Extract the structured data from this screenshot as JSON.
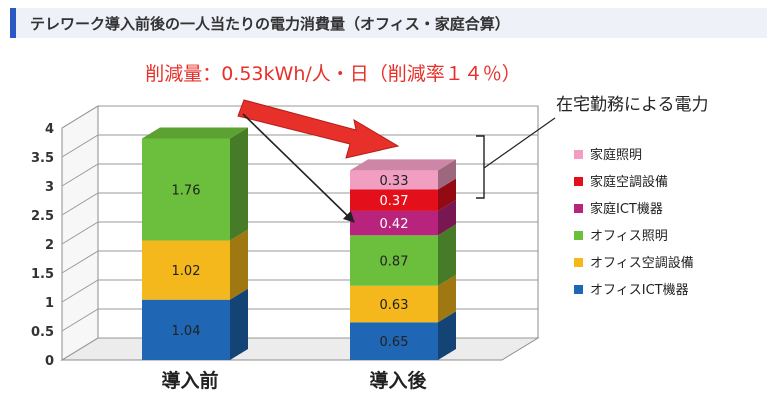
{
  "header": {
    "title": "テレワーク導入前後の一人当たりの電力消費量（オフィス・家庭合算）"
  },
  "colors": {
    "accent_bar": "#2b59c3",
    "annotation_red": "#e8302a"
  },
  "annotations": {
    "reduction": "削減量：0.53kWh/人・日（削減率１４％）",
    "home_work": "在宅勤務による電力"
  },
  "chart_data": {
    "type": "bar",
    "stacked": true,
    "three_d": true,
    "categories": [
      "導入前",
      "導入後"
    ],
    "ylim": [
      0,
      4
    ],
    "yticks": [
      "0",
      "0.5",
      "1",
      "1.5",
      "2",
      "2.5",
      "3",
      "3.5",
      "4"
    ],
    "grid": true,
    "legend_position": "right",
    "series": [
      {
        "name": "オフィスICT機器",
        "color": "#1f67b4",
        "values": [
          1.04,
          0.65
        ],
        "labels": [
          "1.04",
          "0.65"
        ]
      },
      {
        "name": "オフィス空調設備",
        "color": "#f5b81c",
        "values": [
          1.02,
          0.63
        ],
        "labels": [
          "1.02",
          "0.63"
        ]
      },
      {
        "name": "オフィス照明",
        "color": "#6cbf3c",
        "values": [
          1.76,
          0.87
        ],
        "labels": [
          "1.76",
          "0.87"
        ]
      },
      {
        "name": "家庭ICT機器",
        "color": "#b8237e",
        "values": [
          0,
          0.42
        ],
        "labels": [
          "",
          "0.42"
        ]
      },
      {
        "name": "家庭空調設備",
        "color": "#e3101c",
        "values": [
          0,
          0.37
        ],
        "labels": [
          "",
          "0.37"
        ]
      },
      {
        "name": "家庭照明",
        "color": "#f19ec2",
        "values": [
          0,
          0.33
        ],
        "labels": [
          "",
          "0.33"
        ]
      }
    ]
  }
}
